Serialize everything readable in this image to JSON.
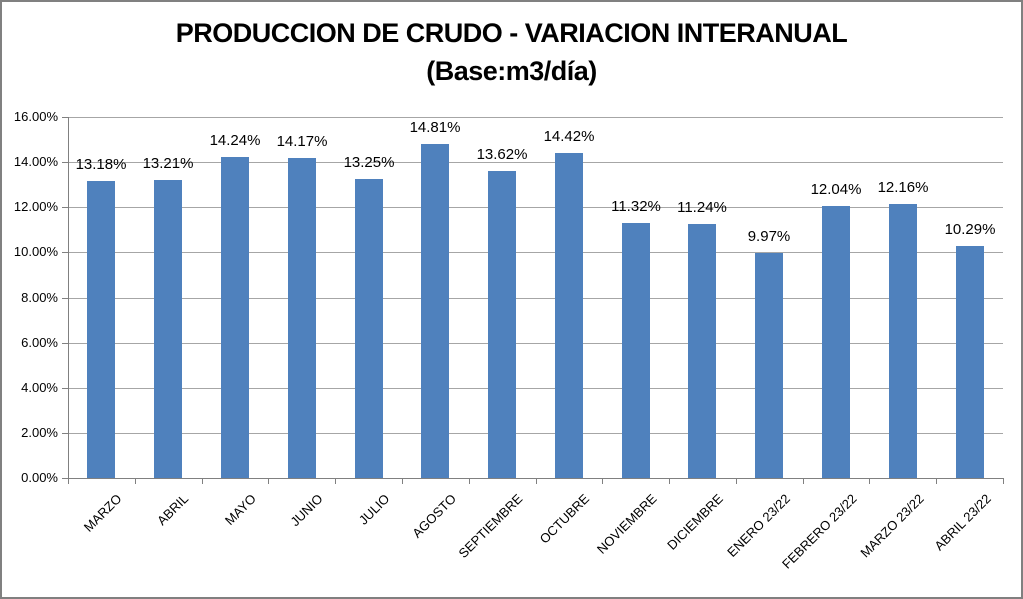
{
  "chart_data": {
    "type": "bar",
    "title": "PRODUCCION DE CRUDO - VARIACION INTERANUAL",
    "subtitle": "(Base:m3/día)",
    "categories": [
      "MARZO",
      "ABRIL",
      "MAYO",
      "JUNIO",
      "JULIO",
      "AGOSTO",
      "SEPTIEMBRE",
      "OCTUBRE",
      "NOVIEMBRE",
      "DICIEMBRE",
      "ENERO 23/22",
      "FEBRERO 23/22",
      "MARZO 23/22",
      "ABRIL 23/22"
    ],
    "values": [
      13.18,
      13.21,
      14.24,
      14.17,
      13.25,
      14.81,
      13.62,
      14.42,
      11.32,
      11.24,
      9.97,
      12.04,
      12.16,
      10.29
    ],
    "value_labels": [
      "13.18%",
      "13.21%",
      "14.24%",
      "14.17%",
      "13.25%",
      "14.81%",
      "13.62%",
      "14.42%",
      "11.32%",
      "11.24%",
      "9.97%",
      "12.04%",
      "12.16%",
      "10.29%"
    ],
    "y_ticks": [
      "0.00%",
      "2.00%",
      "4.00%",
      "6.00%",
      "8.00%",
      "10.00%",
      "12.00%",
      "14.00%",
      "16.00%"
    ],
    "ylim": [
      0,
      16
    ],
    "ytick_step": 2,
    "xlabel": "",
    "ylabel": "",
    "grid": true,
    "legend": "none",
    "bar_color": "#4F81BD",
    "gridline_color": "#A6A6A6",
    "axis_color": "#808080",
    "text_color": "#000000",
    "frame_border_color": "#808080",
    "background_color": "#FFFFFF"
  }
}
